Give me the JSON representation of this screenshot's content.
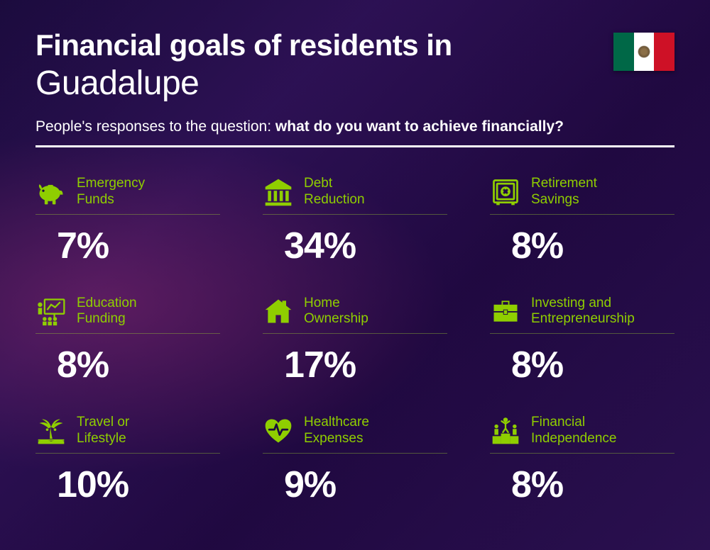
{
  "header": {
    "title_line1": "Financial goals of residents in",
    "title_line2": "Guadalupe",
    "subtitle_prefix": "People's responses to the question: ",
    "subtitle_bold": "what do you want to achieve financially?"
  },
  "flag": {
    "stripes": [
      "#006847",
      "#ffffff",
      "#ce1126"
    ]
  },
  "colors": {
    "accent": "#8fce00",
    "text": "#ffffff",
    "label": "#8fce00",
    "divider_under_item": "rgba(154,205,50,0.4)"
  },
  "typography": {
    "title_line1_size": 42,
    "title_line1_weight": 800,
    "title_line2_size": 48,
    "title_line2_weight": 300,
    "subtitle_size": 21,
    "label_size": 19,
    "value_size": 52,
    "value_weight": 800
  },
  "layout": {
    "columns": 3,
    "rows": 3,
    "col_gap": 60,
    "row_gap": 40
  },
  "items": [
    {
      "icon": "piggy-bank",
      "label": "Emergency\nFunds",
      "value": "7%"
    },
    {
      "icon": "bank",
      "label": "Debt\nReduction",
      "value": "34%"
    },
    {
      "icon": "safe",
      "label": "Retirement\nSavings",
      "value": "8%"
    },
    {
      "icon": "presentation",
      "label": "Education\nFunding",
      "value": "8%"
    },
    {
      "icon": "house",
      "label": "Home\nOwnership",
      "value": "17%"
    },
    {
      "icon": "briefcase",
      "label": "Investing and\nEntrepreneurship",
      "value": "8%"
    },
    {
      "icon": "palm-tree",
      "label": "Travel or\nLifestyle",
      "value": "10%"
    },
    {
      "icon": "heart-pulse",
      "label": "Healthcare\nExpenses",
      "value": "9%"
    },
    {
      "icon": "podium",
      "label": "Financial\nIndependence",
      "value": "8%"
    }
  ]
}
